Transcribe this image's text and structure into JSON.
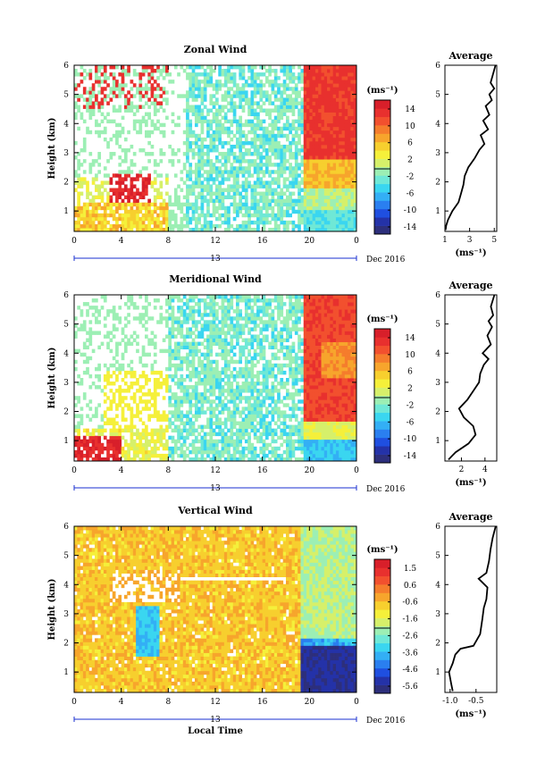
{
  "chart_data": [
    {
      "type": "heatmap",
      "title": "Zonal Wind",
      "ylabel": "Height (km)",
      "xticks": [
        "0",
        "4",
        "8",
        "12",
        "16",
        "20",
        "0"
      ],
      "yticks": [
        "1",
        "2",
        "3",
        "4",
        "5",
        "6"
      ],
      "xlim": [
        0,
        24
      ],
      "ylim": [
        0.3,
        6
      ],
      "date_label": "13",
      "month_label": "Dec 2016",
      "colorbar": {
        "unit": "(ms⁻¹)",
        "ticks": [
          "14",
          "10",
          "6",
          "2",
          "-2",
          "-6",
          "-10",
          "-14"
        ],
        "range": [
          -16,
          16
        ]
      },
      "scheme": "zonal",
      "average": {
        "title": "Average",
        "xticks": [
          "1",
          "3",
          "5"
        ],
        "xlim": [
          1,
          5.2
        ],
        "xlabel": "(ms⁻¹)",
        "points": [
          [
            1.05,
            0.35
          ],
          [
            1.1,
            0.5
          ],
          [
            1.25,
            0.7
          ],
          [
            1.6,
            1.0
          ],
          [
            2.1,
            1.3
          ],
          [
            2.3,
            1.6
          ],
          [
            2.5,
            1.9
          ],
          [
            2.6,
            2.2
          ],
          [
            2.9,
            2.5
          ],
          [
            3.4,
            2.8
          ],
          [
            3.8,
            3.1
          ],
          [
            4.2,
            3.3
          ],
          [
            3.9,
            3.6
          ],
          [
            4.5,
            3.8
          ],
          [
            4.1,
            4.1
          ],
          [
            4.6,
            4.3
          ],
          [
            4.3,
            4.6
          ],
          [
            4.8,
            4.8
          ],
          [
            4.6,
            5.0
          ],
          [
            5.0,
            5.2
          ],
          [
            4.7,
            5.4
          ],
          [
            4.9,
            5.7
          ],
          [
            5.1,
            6.0
          ]
        ]
      }
    },
    {
      "type": "heatmap",
      "title": "Meridional Wind",
      "ylabel": "Height (km)",
      "xticks": [
        "0",
        "4",
        "8",
        "12",
        "16",
        "20",
        "0"
      ],
      "yticks": [
        "1",
        "2",
        "3",
        "4",
        "5",
        "6"
      ],
      "xlim": [
        0,
        24
      ],
      "ylim": [
        0.3,
        6
      ],
      "date_label": "13",
      "month_label": "Dec 2016",
      "colorbar": {
        "unit": "(ms⁻¹)",
        "ticks": [
          "14",
          "10",
          "6",
          "2",
          "-2",
          "-6",
          "-10",
          "-14"
        ],
        "range": [
          -16,
          16
        ]
      },
      "scheme": "meridional",
      "average": {
        "title": "Average",
        "xticks": [
          "2",
          "4"
        ],
        "xlim": [
          0.6,
          5.0
        ],
        "xlabel": "(ms⁻¹)",
        "points": [
          [
            0.9,
            0.35
          ],
          [
            1.5,
            0.6
          ],
          [
            2.6,
            0.9
          ],
          [
            3.2,
            1.2
          ],
          [
            3.0,
            1.5
          ],
          [
            2.2,
            1.8
          ],
          [
            1.8,
            2.1
          ],
          [
            2.5,
            2.4
          ],
          [
            3.0,
            2.7
          ],
          [
            3.5,
            3.0
          ],
          [
            3.6,
            3.3
          ],
          [
            3.9,
            3.6
          ],
          [
            4.3,
            3.8
          ],
          [
            3.8,
            4.0
          ],
          [
            4.5,
            4.3
          ],
          [
            4.2,
            4.6
          ],
          [
            4.6,
            4.9
          ],
          [
            4.3,
            5.1
          ],
          [
            4.7,
            5.3
          ],
          [
            4.5,
            5.6
          ],
          [
            4.8,
            6.0
          ]
        ]
      }
    },
    {
      "type": "heatmap",
      "title": "Vertical Wind",
      "ylabel": "Height (km)",
      "xlabel": "Local Time",
      "xticks": [
        "0",
        "4",
        "8",
        "12",
        "16",
        "20",
        "0"
      ],
      "yticks": [
        "1",
        "2",
        "3",
        "4",
        "5",
        "6"
      ],
      "xlim": [
        0,
        24
      ],
      "ylim": [
        0.3,
        6
      ],
      "date_label": "13",
      "month_label": "Dec 2016",
      "colorbar": {
        "unit": "(ms⁻¹)",
        "ticks": [
          "1.5",
          "0.6",
          "-0.6",
          "-1.6",
          "-2.6",
          "-3.6",
          "-4.6",
          "-5.6"
        ],
        "range": [
          -6,
          2
        ]
      },
      "scheme": "vertical",
      "average": {
        "title": "Average",
        "xticks": [
          "-1.0",
          "-0.5"
        ],
        "xlim": [
          -1.1,
          -0.1
        ],
        "xlabel": "(ms⁻¹)",
        "points": [
          [
            -0.95,
            0.35
          ],
          [
            -0.98,
            0.6
          ],
          [
            -1.02,
            1.0
          ],
          [
            -0.95,
            1.3
          ],
          [
            -0.9,
            1.6
          ],
          [
            -0.8,
            1.8
          ],
          [
            -0.55,
            1.9
          ],
          [
            -0.42,
            2.3
          ],
          [
            -0.38,
            2.8
          ],
          [
            -0.35,
            3.2
          ],
          [
            -0.3,
            3.5
          ],
          [
            -0.28,
            3.9
          ],
          [
            -0.45,
            4.2
          ],
          [
            -0.3,
            4.4
          ],
          [
            -0.25,
            4.8
          ],
          [
            -0.22,
            5.2
          ],
          [
            -0.18,
            5.6
          ],
          [
            -0.12,
            6.0
          ]
        ]
      }
    }
  ]
}
